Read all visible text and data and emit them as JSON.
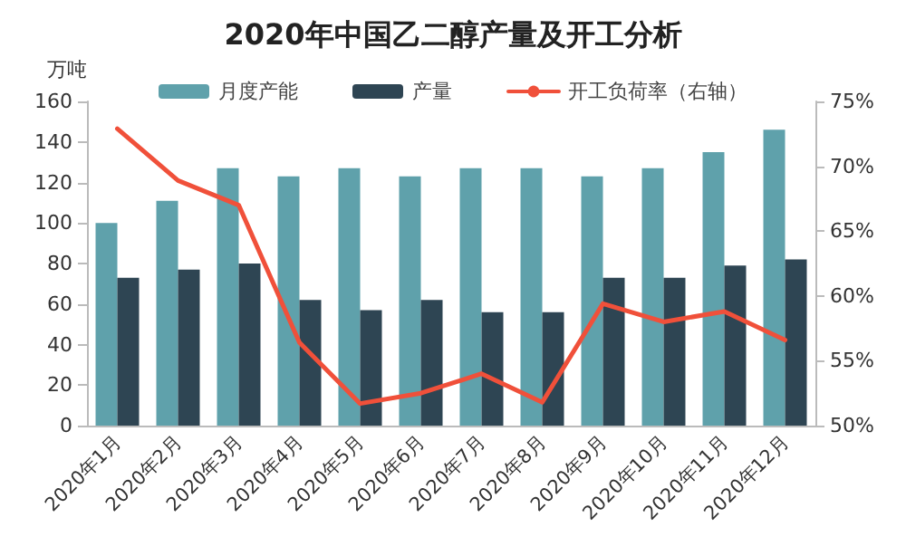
{
  "chart_data": {
    "type": "bar",
    "title": "2020年中国乙二醇产量及开工分析",
    "ylabel": "万吨",
    "categories": [
      "2020年1月",
      "2020年2月",
      "2020年3月",
      "2020年4月",
      "2020年5月",
      "2020年6月",
      "2020年7月",
      "2020年8月",
      "2020年9月",
      "2020年10月",
      "2020年11月",
      "2020年12月"
    ],
    "series": [
      {
        "name": "月度产能",
        "color": "#5fa1ab",
        "values": [
          100,
          111,
          127,
          123,
          127,
          123,
          127,
          127,
          123,
          127,
          135,
          146
        ]
      },
      {
        "name": "产量",
        "color": "#2e4553",
        "values": [
          73,
          77,
          80,
          62,
          57,
          62,
          56,
          56,
          73,
          73,
          79,
          82
        ]
      },
      {
        "name": "开工负荷率（右轴）",
        "type": "line",
        "axis": "y2",
        "color": "#f0503a",
        "values": [
          72.9,
          68.9,
          67.0,
          56.4,
          51.7,
          52.5,
          54.0,
          51.8,
          59.4,
          58.0,
          58.8,
          56.6
        ]
      }
    ],
    "ylim": [
      0,
      160
    ],
    "yticks": [
      0,
      20,
      40,
      60,
      80,
      100,
      120,
      140,
      160
    ],
    "y2lim": [
      50,
      75
    ],
    "y2ticks": [
      {
        "value": 50,
        "label": "50%"
      },
      {
        "value": 55,
        "label": "55%"
      },
      {
        "value": 60,
        "label": "60%"
      },
      {
        "value": 65,
        "label": "65%"
      },
      {
        "value": 70,
        "label": "70%"
      },
      {
        "value": 75,
        "label": "75%"
      }
    ],
    "legend": "top",
    "grid": false,
    "marker": "none"
  }
}
